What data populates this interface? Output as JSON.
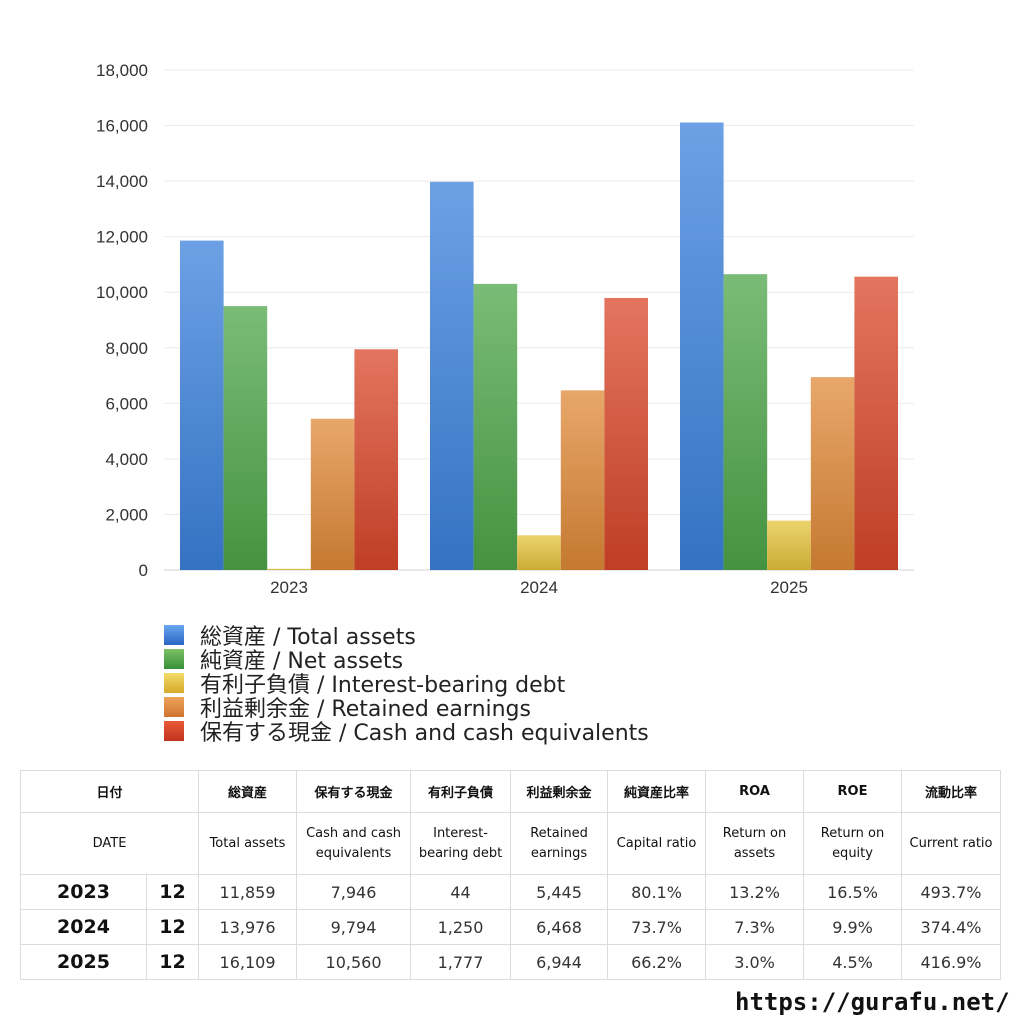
{
  "chart_data": {
    "type": "bar",
    "categories": [
      "2023",
      "2024",
      "2025"
    ],
    "ylim": [
      0,
      18000
    ],
    "yticks": [
      "0",
      "2,000",
      "4,000",
      "6,000",
      "8,000",
      "10,000",
      "12,000",
      "14,000",
      "16,000",
      "18,000"
    ],
    "grid": true,
    "legend_position": "bottom",
    "series": [
      {
        "name": "総資産 / Total assets",
        "color": "#3b82dc",
        "values": [
          11859,
          13976,
          16109
        ]
      },
      {
        "name": "純資産 / Net assets",
        "color": "#4ea64a",
        "values": [
          9500,
          10300,
          10650
        ]
      },
      {
        "name": "有利子負債 / Interest-bearing debt",
        "color": "#e6c43c",
        "values": [
          44,
          1250,
          1777
        ]
      },
      {
        "name": "利益剰余金 / Retained earnings",
        "color": "#e08a38",
        "values": [
          5445,
          6468,
          6944
        ]
      },
      {
        "name": "保有する現金 /  Cash and cash equivalents",
        "color": "#d9472a",
        "values": [
          7946,
          9794,
          10560
        ]
      }
    ]
  },
  "table": {
    "header_jp": [
      "日付",
      "総資産",
      "保有する現金",
      "有利子負債",
      "利益剰余金",
      "純資産比率",
      "ROA",
      "ROE",
      "流動比率"
    ],
    "header_en": [
      "DATE",
      "Total assets",
      "Cash and cash equivalents",
      "Interest-bearing debt",
      "Retained earnings",
      "Capital ratio",
      "Return on assets",
      "Return on equity",
      "Current ratio"
    ],
    "rows": [
      {
        "year": "2023",
        "month": "12",
        "total_assets": "11,859",
        "cash": "7,946",
        "debt": "44",
        "retained": "5,445",
        "capital_ratio": "80.1%",
        "roa": "13.2%",
        "roe": "16.5%",
        "current_ratio": "493.7%"
      },
      {
        "year": "2024",
        "month": "12",
        "total_assets": "13,976",
        "cash": "9,794",
        "debt": "1,250",
        "retained": "6,468",
        "capital_ratio": "73.7%",
        "roa": "7.3%",
        "roe": "9.9%",
        "current_ratio": "374.4%"
      },
      {
        "year": "2025",
        "month": "12",
        "total_assets": "16,109",
        "cash": "10,560",
        "debt": "1,777",
        "retained": "6,944",
        "capital_ratio": "66.2%",
        "roa": "3.0%",
        "roe": "4.5%",
        "current_ratio": "416.9%"
      }
    ]
  },
  "footer": {
    "url": "https://gurafu.net/"
  }
}
